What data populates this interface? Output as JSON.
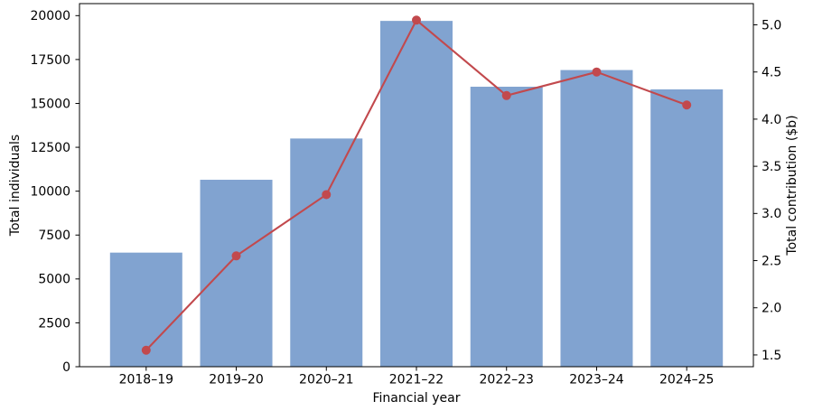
{
  "chart_data": {
    "type": "combo-bar-line",
    "categories": [
      "2018–19",
      "2019–20",
      "2020–21",
      "2021–22",
      "2022–23",
      "2023–24",
      "2024–25"
    ],
    "series": [
      {
        "name": "Total individuals",
        "type": "bar",
        "axis": "left",
        "color": "#81a3d0",
        "values": [
          6500,
          10650,
          13000,
          19700,
          15950,
          16900,
          15800
        ]
      },
      {
        "name": "Total contribution ($b)",
        "type": "line",
        "axis": "right",
        "color": "#c2494d",
        "values": [
          1.55,
          2.55,
          3.2,
          5.05,
          4.25,
          4.5,
          4.15
        ]
      }
    ],
    "xlabel": "Financial year",
    "ylabel_left": "Total individuals",
    "ylabel_right": "Total contribution ($b)",
    "ylim_left": [
      0,
      20685
    ],
    "ylim_right": [
      1.375,
      5.225
    ],
    "yticks_left": [
      0,
      2500,
      5000,
      7500,
      10000,
      12500,
      15000,
      17500,
      20000
    ],
    "yticks_right": [
      1.5,
      2.0,
      2.5,
      3.0,
      3.5,
      4.0,
      4.5,
      5.0
    ],
    "grid": false,
    "legend": "none",
    "axis_color": "#000000",
    "background": "#ffffff"
  }
}
